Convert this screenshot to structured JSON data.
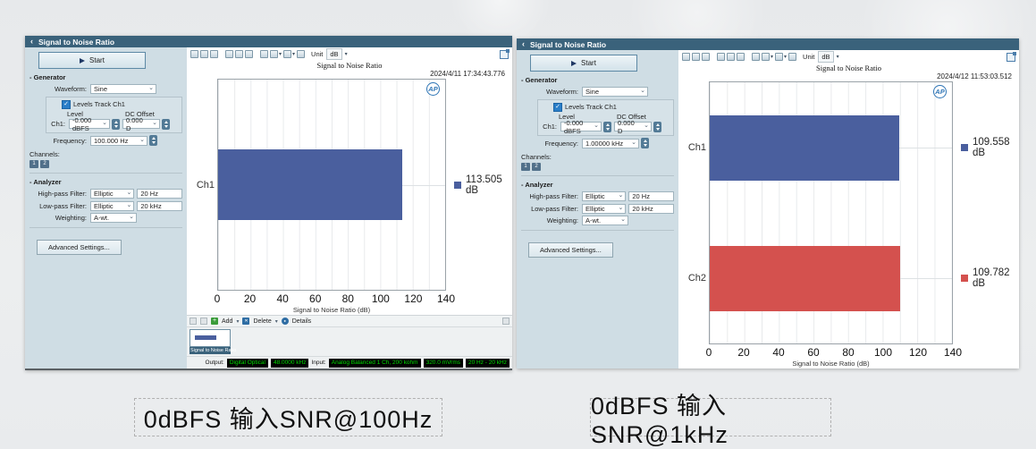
{
  "page": {
    "captions": [
      "0dBFS 输入SNR@100Hz",
      "0dBFS 输入SNR@1kHz"
    ]
  },
  "left": {
    "header_title": "Signal to Noise Ratio",
    "start_label": "Start",
    "generator": {
      "title": "Generator",
      "waveform_label": "Waveform:",
      "waveform_value": "Sine",
      "levels_track": "Levels Track Ch1",
      "level_label": "Level",
      "dc_offset_label": "DC Offset",
      "ch1_label": "Ch1:",
      "ch1_level_value": "-0.000 dBFS",
      "dc_offset_value": "0.000 D",
      "frequency_label": "Frequency:",
      "frequency_value": "100.000 Hz"
    },
    "channels_label": "Channels:",
    "channel_buttons": [
      "1",
      "2"
    ],
    "analyzer": {
      "title": "Analyzer",
      "hp_label": "High-pass Filter:",
      "hp_value": "Elliptic",
      "hp_freq": "20 Hz",
      "lp_label": "Low-pass Filter:",
      "lp_value": "Elliptic",
      "lp_freq": "20 kHz",
      "weighting_label": "Weighting:",
      "weighting_value": "A-wt."
    },
    "advanced_label": "Advanced Settings...",
    "unit_label": "Unit",
    "unit_value": "dB",
    "bottom_toolbar": {
      "add": "Add",
      "delete": "Delete",
      "details": "Details"
    },
    "thumbnail_label": "Signal to Noise Ratio",
    "status": {
      "output_label": "Output:",
      "output_badges": [
        "Digital Optical",
        "48.0000 kHz"
      ],
      "input_label": "Input:",
      "input_badges": [
        "Analog Balanced 1 Ch, 200 kohm",
        "320.0 mVrms",
        "20 Hz - 20 kHz"
      ]
    }
  },
  "right": {
    "header_title": "Signal to Noise Ratio",
    "start_label": "Start",
    "generator": {
      "title": "Generator",
      "waveform_label": "Waveform:",
      "waveform_value": "Sine",
      "levels_track": "Levels Track Ch1",
      "level_label": "Level",
      "dc_offset_label": "DC Offset",
      "ch1_label": "Ch1:",
      "ch1_level_value": "-0.000 dBFS",
      "dc_offset_value": "0.000 D",
      "frequency_label": "Frequency:",
      "frequency_value": "1.00000 kHz"
    },
    "channels_label": "Channels:",
    "channel_buttons": [
      "1",
      "2"
    ],
    "analyzer": {
      "title": "Analyzer",
      "hp_label": "High-pass Filter:",
      "hp_value": "Elliptic",
      "hp_freq": "20 Hz",
      "lp_label": "Low-pass Filter:",
      "lp_value": "Elliptic",
      "lp_freq": "20 kHz",
      "weighting_label": "Weighting:",
      "weighting_value": "A-wt."
    },
    "advanced_label": "Advanced Settings...",
    "unit_label": "Unit",
    "unit_value": "dB"
  },
  "chart_data": [
    {
      "type": "bar",
      "orientation": "horizontal",
      "title": "Signal to Noise Ratio",
      "timestamp": "2024/4/11 17:34:43.776",
      "logo": "AP",
      "categories": [
        "Ch1"
      ],
      "values": [
        113.505
      ],
      "value_labels": [
        "113.505 dB"
      ],
      "colors": [
        "#4a5f9e"
      ],
      "xlabel": "Signal to Noise Ratio (dB)",
      "xlim": [
        0,
        140
      ],
      "xticks": [
        0,
        20,
        40,
        60,
        80,
        100,
        120,
        140
      ],
      "grid": true,
      "legend_position": "right"
    },
    {
      "type": "bar",
      "orientation": "horizontal",
      "title": "Signal to Noise Ratio",
      "timestamp": "2024/4/12 11:53:03.512",
      "logo": "AP",
      "categories": [
        "Ch1",
        "Ch2"
      ],
      "values": [
        109.558,
        109.782
      ],
      "value_labels": [
        "109.558 dB",
        "109.782 dB"
      ],
      "colors": [
        "#4a5f9e",
        "#d4514e"
      ],
      "xlabel": "Signal to Noise Ratio (dB)",
      "xlim": [
        0,
        140
      ],
      "xticks": [
        0,
        20,
        40,
        60,
        80,
        100,
        120,
        140
      ],
      "grid": true,
      "legend_position": "right"
    }
  ]
}
